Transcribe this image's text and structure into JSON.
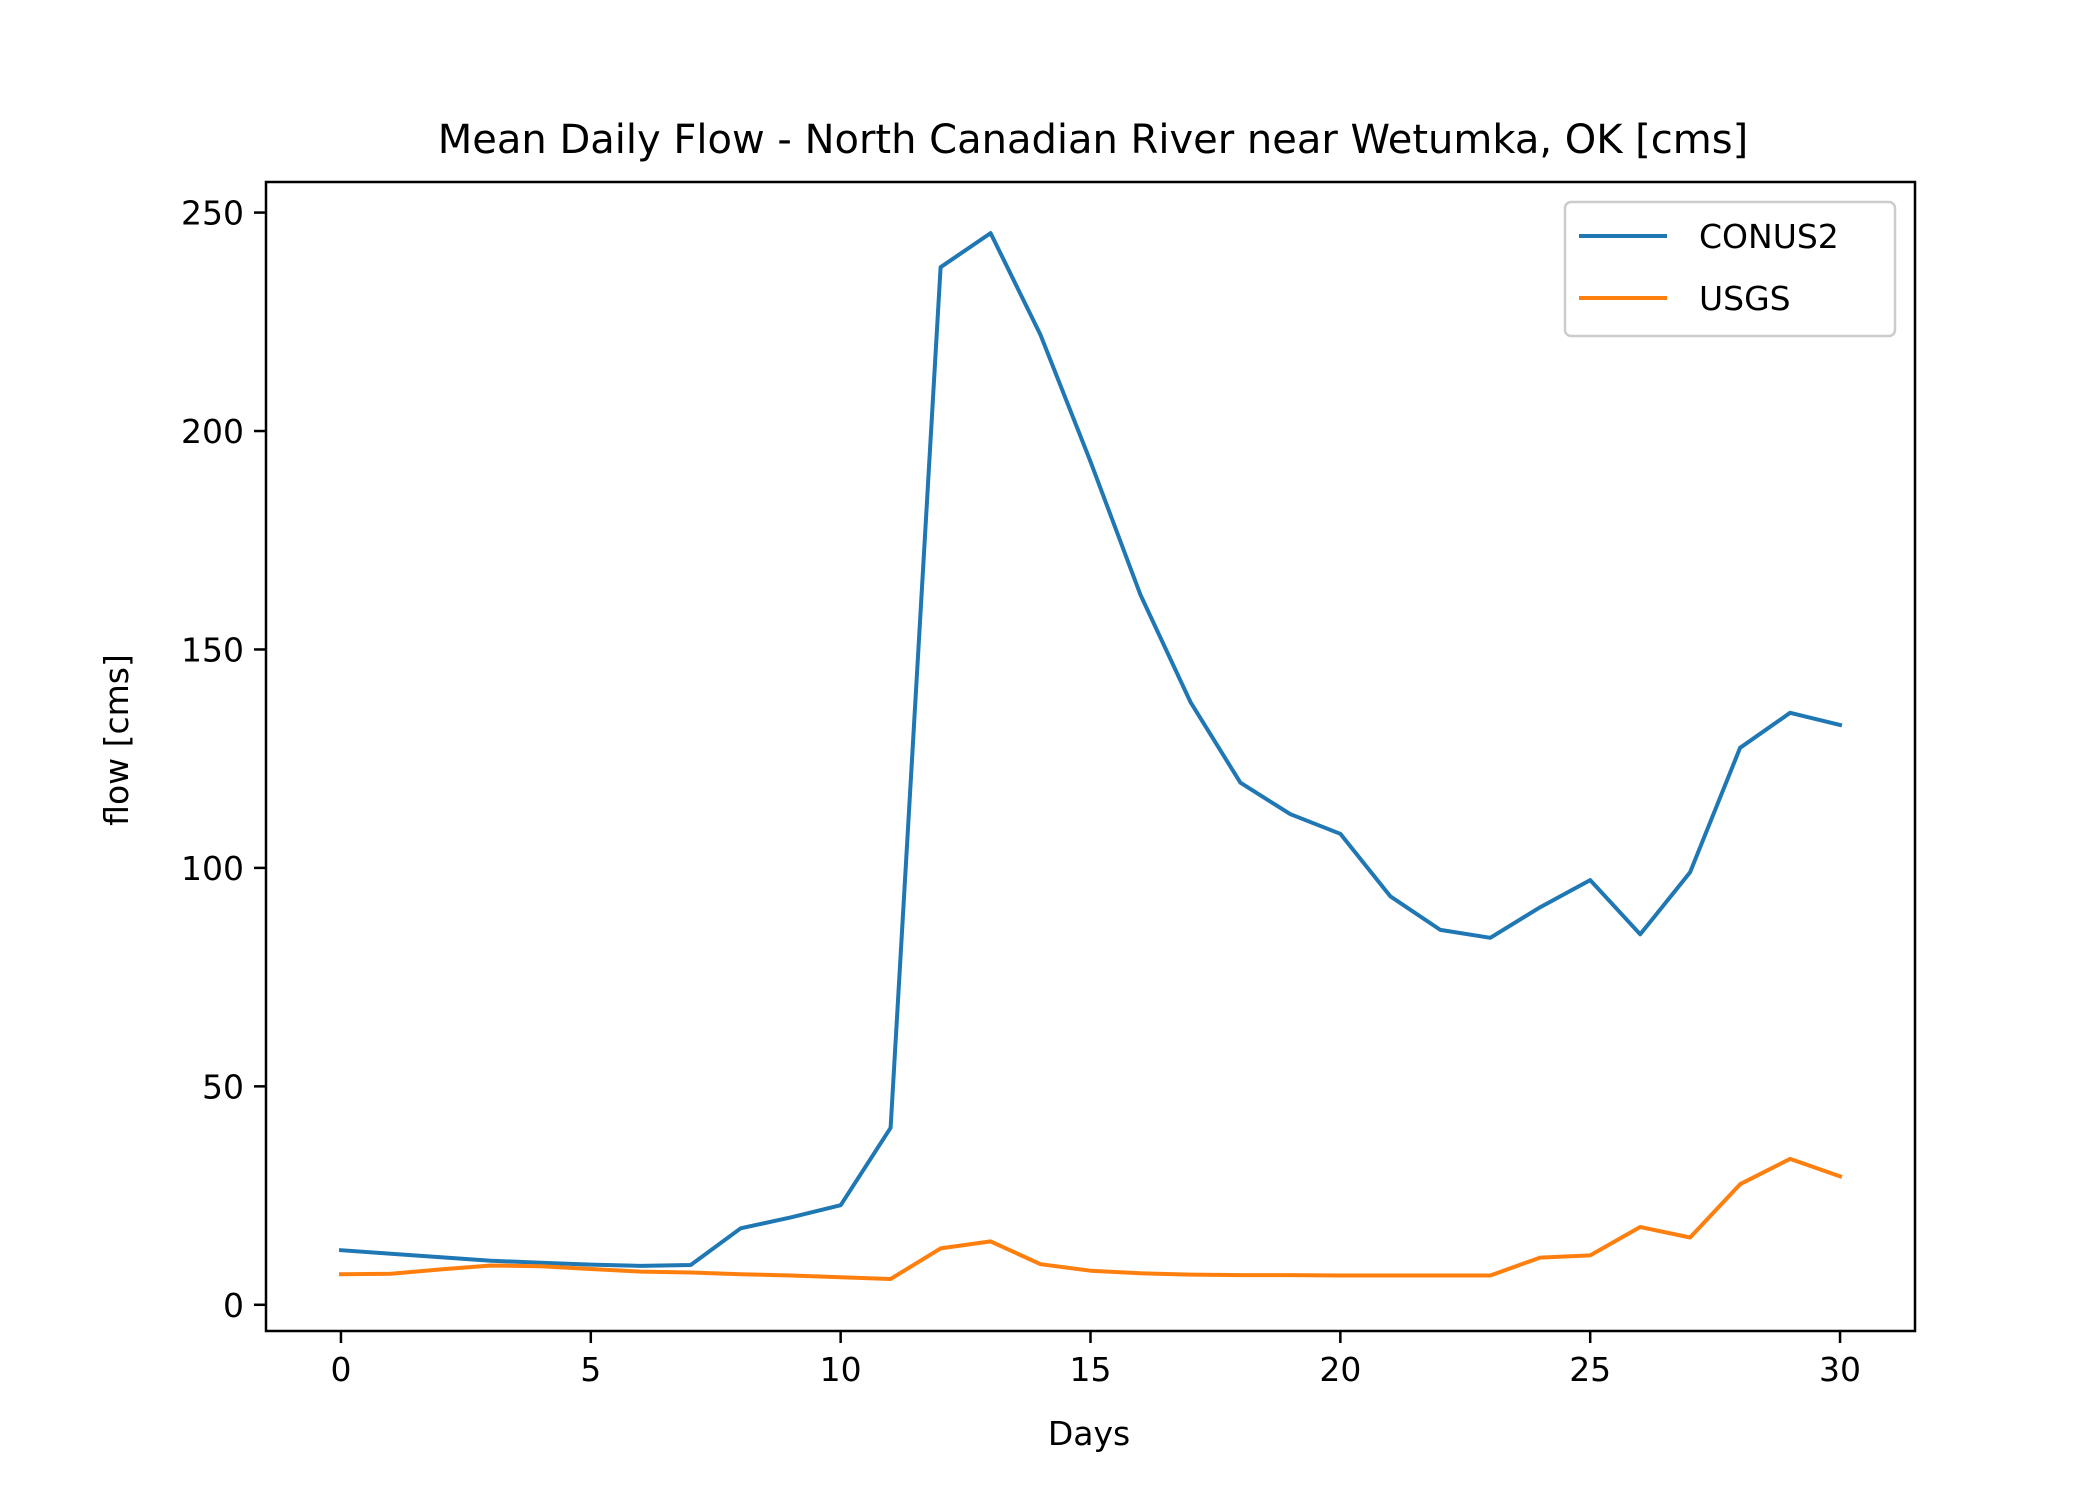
{
  "chart_data": {
    "type": "line",
    "title": "Mean Daily Flow - North Canadian River near Wetumka, OK [cms]",
    "xlabel": "Days",
    "ylabel": "flow [cms]",
    "xlim": [
      -1.5,
      31.5
    ],
    "ylim": [
      -6,
      257
    ],
    "xticks": [
      0,
      5,
      10,
      15,
      20,
      25,
      30
    ],
    "yticks": [
      0,
      50,
      100,
      150,
      200,
      250
    ],
    "grid": false,
    "legend_position": "top-right",
    "x": [
      0,
      1,
      2,
      3,
      4,
      5,
      6,
      7,
      8,
      9,
      10,
      11,
      12,
      13,
      14,
      15,
      16,
      17,
      18,
      19,
      20,
      21,
      22,
      23,
      24,
      25,
      26,
      27,
      28,
      29,
      30
    ],
    "series": [
      {
        "name": "CONUS2",
        "color": "#1f77b4",
        "values": [
          12.5,
          11.7,
          10.9,
          10.1,
          9.6,
          9.2,
          8.9,
          9.1,
          17.5,
          20.0,
          22.8,
          40.5,
          237.5,
          245.3,
          222.0,
          193.0,
          162.5,
          138.0,
          119.5,
          112.3,
          107.8,
          93.5,
          85.8,
          84.0,
          91.0,
          97.2,
          84.8,
          99.0,
          127.5,
          135.5,
          132.7
        ]
      },
      {
        "name": "USGS",
        "color": "#ff7f0e",
        "values": [
          7.0,
          7.1,
          8.1,
          9.0,
          8.8,
          8.2,
          7.6,
          7.4,
          7.0,
          6.7,
          6.3,
          5.9,
          12.9,
          14.5,
          9.3,
          7.8,
          7.2,
          6.9,
          6.8,
          6.8,
          6.7,
          6.7,
          6.7,
          6.7,
          10.8,
          11.3,
          17.8,
          15.4,
          27.6,
          33.4,
          29.4
        ]
      }
    ]
  }
}
